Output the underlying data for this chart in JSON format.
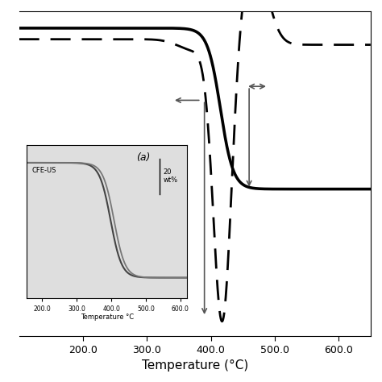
{
  "xlabel": "Temperature (°C)",
  "xlim": [
    100,
    650
  ],
  "ylim_main": [
    -1.05,
    0.12
  ],
  "xticks": [
    200,
    300,
    400,
    500,
    600
  ],
  "xticklabels": [
    "200.0",
    "300.0",
    "400.0",
    "500.0",
    "600.0"
  ],
  "solid_color": "#000000",
  "dashed_color": "#000000",
  "arrow_color": "#555555",
  "inset_bg": "#dedede",
  "inset_label": "CFE-US",
  "inset_annotation": "(a)",
  "inset_wt_label": "20\nwt%"
}
